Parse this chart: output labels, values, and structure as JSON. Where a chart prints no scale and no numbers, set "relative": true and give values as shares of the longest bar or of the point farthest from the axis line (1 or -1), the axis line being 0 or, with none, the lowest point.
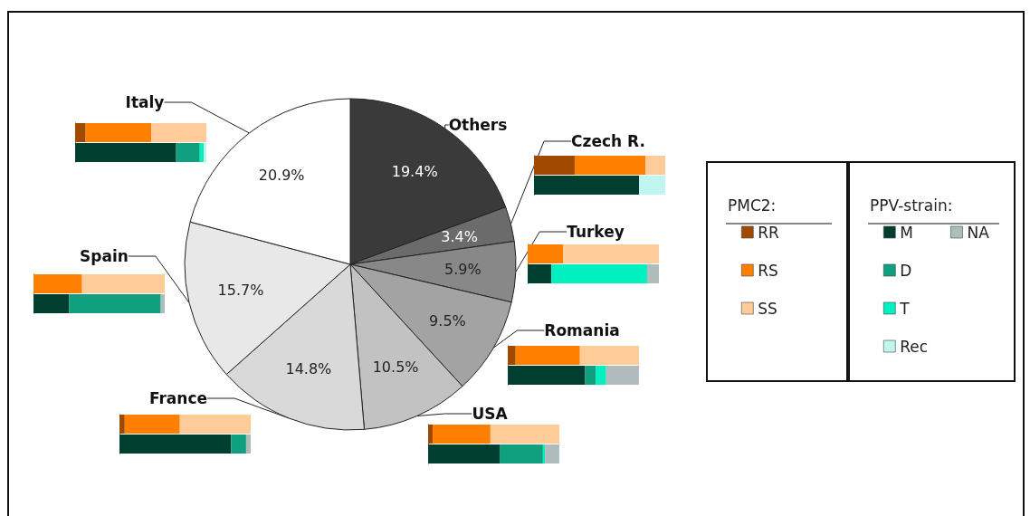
{
  "chart_data": [
    {
      "type": "pie",
      "categories": [
        "Others",
        "Czech R.",
        "Turkey",
        "Romania",
        "USA",
        "France",
        "Spain",
        "Italy"
      ],
      "values": [
        19.4,
        3.4,
        5.9,
        9.5,
        10.5,
        14.8,
        15.7,
        20.9
      ],
      "colors": [
        "#3a3a3a",
        "#6b6b6b",
        "#888888",
        "#a3a3a3",
        "#c2c2c2",
        "#d9d9d9",
        "#e8e8e8",
        "#ffffff"
      ],
      "value_labels": [
        "19.4%",
        "3.4%",
        "5.9%",
        "9.5%",
        "10.5%",
        "14.8%",
        "15.7%",
        "20.9%"
      ]
    },
    {
      "type": "bar",
      "orientation": "horizontal",
      "stacked": true,
      "relative": true,
      "categories": [
        null
      ],
      "series": [
        {
          "color": "#a04a00",
          "values": [
            0.08
          ]
        },
        {
          "color": "#ff7f00",
          "values": [
            0.5
          ]
        },
        {
          "color": "#ffcc99",
          "values": [
            0.42
          ]
        }
      ]
    },
    {
      "type": "bar",
      "orientation": "horizontal",
      "stacked": true,
      "relative": true,
      "categories": [
        null
      ],
      "series": [
        {
          "color": "#003f2f",
          "values": [
            0.77
          ]
        },
        {
          "color": "#10a080",
          "values": [
            0.18
          ]
        },
        {
          "color": "#00f0c0",
          "values": [
            0.03
          ]
        },
        {
          "color": "#c0f5f0",
          "values": [
            0.02
          ]
        }
      ]
    },
    {
      "type": "bar",
      "orientation": "horizontal",
      "stacked": true,
      "relative": true,
      "categories": [
        null
      ],
      "series": [
        {
          "color": "#a04a00",
          "values": [
            0.31
          ]
        },
        {
          "color": "#ff7f00",
          "values": [
            0.54
          ]
        },
        {
          "color": "#ffcc99",
          "values": [
            0.15
          ]
        }
      ]
    },
    {
      "type": "bar",
      "orientation": "horizontal",
      "stacked": true,
      "relative": true,
      "categories": [
        null
      ],
      "series": [
        {
          "color": "#003f2f",
          "values": [
            0.8
          ]
        },
        {
          "color": "#c0f5f0",
          "values": [
            0.2
          ]
        }
      ]
    },
    {
      "type": "bar",
      "orientation": "horizontal",
      "stacked": true,
      "relative": true,
      "categories": [
        null
      ],
      "series": [
        {
          "color": "#ff7f00",
          "values": [
            0.27
          ]
        },
        {
          "color": "#ffcc99",
          "values": [
            0.73
          ]
        }
      ]
    },
    {
      "type": "bar",
      "orientation": "horizontal",
      "stacked": true,
      "relative": true,
      "categories": [
        null
      ],
      "series": [
        {
          "color": "#003f2f",
          "values": [
            0.18
          ]
        },
        {
          "color": "#00f0c0",
          "values": [
            0.73
          ]
        },
        {
          "color": "#b0bcbc",
          "values": [
            0.09
          ]
        }
      ]
    },
    {
      "type": "bar",
      "orientation": "horizontal",
      "stacked": true,
      "relative": true,
      "categories": [
        null
      ],
      "series": [
        {
          "color": "#ff7f00",
          "values": [
            0.37
          ]
        },
        {
          "color": "#ffcc99",
          "values": [
            0.63
          ]
        }
      ]
    },
    {
      "type": "bar",
      "orientation": "horizontal",
      "stacked": true,
      "relative": true,
      "categories": [
        null
      ],
      "series": [
        {
          "color": "#003f2f",
          "values": [
            0.27
          ]
        },
        {
          "color": "#10a080",
          "values": [
            0.7
          ]
        },
        {
          "color": "#b0bcbc",
          "values": [
            0.03
          ]
        }
      ]
    },
    {
      "type": "bar",
      "orientation": "horizontal",
      "stacked": true,
      "relative": true,
      "categories": [
        null
      ],
      "series": [
        {
          "color": "#a04a00",
          "values": [
            0.06
          ]
        },
        {
          "color": "#ff7f00",
          "values": [
            0.49
          ]
        },
        {
          "color": "#ffcc99",
          "values": [
            0.45
          ]
        }
      ]
    },
    {
      "type": "bar",
      "orientation": "horizontal",
      "stacked": true,
      "relative": true,
      "categories": [
        null
      ],
      "series": [
        {
          "color": "#003f2f",
          "values": [
            0.59
          ]
        },
        {
          "color": "#10a080",
          "values": [
            0.08
          ]
        },
        {
          "color": "#00f0c0",
          "values": [
            0.08
          ]
        },
        {
          "color": "#b0bcbc",
          "values": [
            0.25
          ]
        }
      ]
    },
    {
      "type": "bar",
      "orientation": "horizontal",
      "stacked": true,
      "relative": true,
      "categories": [
        null
      ],
      "series": [
        {
          "color": "#a04a00",
          "values": [
            0.04
          ]
        },
        {
          "color": "#ff7f00",
          "values": [
            0.42
          ]
        },
        {
          "color": "#ffcc99",
          "values": [
            0.54
          ]
        }
      ]
    },
    {
      "type": "bar",
      "orientation": "horizontal",
      "stacked": true,
      "relative": true,
      "categories": [
        null
      ],
      "series": [
        {
          "color": "#003f2f",
          "values": [
            0.85
          ]
        },
        {
          "color": "#10a080",
          "values": [
            0.115
          ]
        },
        {
          "color": "#b0bcbc",
          "values": [
            0.035
          ]
        }
      ]
    },
    {
      "type": "bar",
      "orientation": "horizontal",
      "stacked": true,
      "relative": true,
      "categories": [
        null
      ],
      "series": [
        {
          "color": "#a04a00",
          "values": [
            0.035
          ]
        },
        {
          "color": "#ff7f00",
          "values": [
            0.44
          ]
        },
        {
          "color": "#ffcc99",
          "values": [
            0.525
          ]
        }
      ]
    },
    {
      "type": "bar",
      "orientation": "horizontal",
      "stacked": true,
      "relative": true,
      "categories": [
        null
      ],
      "series": [
        {
          "color": "#003f2f",
          "values": [
            0.545
          ]
        },
        {
          "color": "#10a080",
          "values": [
            0.33
          ]
        },
        {
          "color": "#00f0c0",
          "values": [
            0.015
          ]
        },
        {
          "color": "#b0bcbc",
          "values": [
            0.11
          ]
        }
      ]
    },
    {
      "type": "other",
      "legend": "right",
      "legend_title": "PMC2:",
      "series": [
        {
          "name": "RR",
          "color": "#a04a00"
        },
        {
          "name": "RS",
          "color": "#ff7f00"
        },
        {
          "name": "SS",
          "color": "#ffcc99"
        }
      ]
    },
    {
      "type": "other",
      "legend": "right",
      "legend_title": "PPV-strain:",
      "series": [
        {
          "name": "M",
          "color": "#003f2f"
        },
        {
          "name": "D",
          "color": "#10a080"
        },
        {
          "name": "T",
          "color": "#00f0c0"
        },
        {
          "name": "Rec",
          "color": "#c0f5f0"
        },
        {
          "name": "NA",
          "color": "#b0bcbc"
        }
      ]
    }
  ]
}
